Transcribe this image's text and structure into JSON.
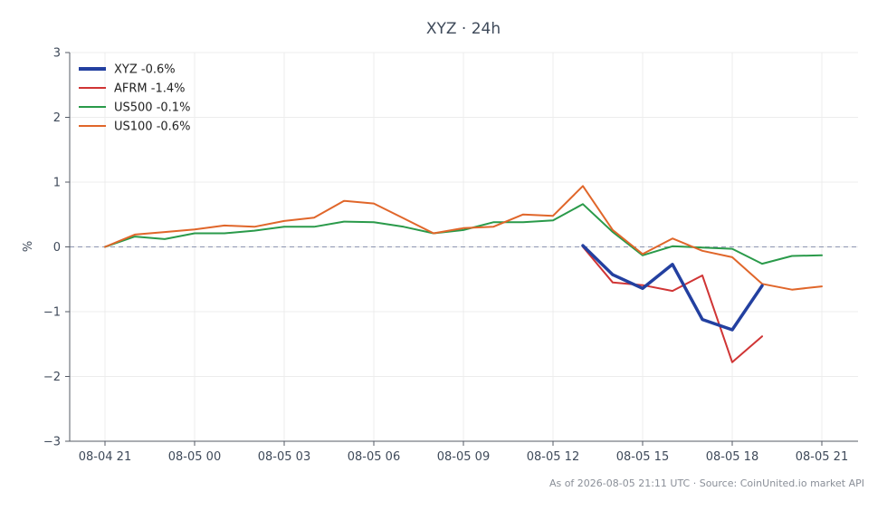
{
  "chart_data": {
    "type": "line",
    "title": "XYZ · 24h",
    "xlabel": "",
    "ylabel": "%",
    "ylim": [
      -3,
      3
    ],
    "yticks": [
      3,
      2,
      1,
      0,
      -1,
      -2,
      -3
    ],
    "ytick_labels": [
      "3",
      "2",
      "1",
      "0",
      "−1",
      "−2",
      "−3"
    ],
    "xlim": [
      0,
      24
    ],
    "xticks": [
      0,
      3,
      6,
      9,
      12,
      15,
      18,
      21,
      24
    ],
    "xtick_labels": [
      "08-04 21",
      "08-05 00",
      "08-05 03",
      "08-05 06",
      "08-05 09",
      "08-05 12",
      "08-05 15",
      "08-05 18",
      "08-05 21"
    ],
    "grid": true,
    "legend_position": "top-left",
    "baseline": 0,
    "series": [
      {
        "name": "XYZ -0.6%",
        "color": "#2340a0",
        "x": [
          16,
          17,
          18,
          19,
          20,
          21,
          22
        ],
        "y": [
          0.02,
          -0.43,
          -0.64,
          -0.27,
          -1.12,
          -1.28,
          -0.6
        ]
      },
      {
        "name": "AFRM -1.4%",
        "color": "#d03535",
        "x": [
          16,
          17,
          18,
          19,
          20,
          21,
          22
        ],
        "y": [
          0.0,
          -0.55,
          -0.59,
          -0.68,
          -0.44,
          -1.78,
          -1.38
        ]
      },
      {
        "name": "US500 -0.1%",
        "color": "#2a9a4a",
        "x": [
          0,
          1,
          2,
          3,
          4,
          5,
          6,
          7,
          8,
          9,
          10,
          11,
          12,
          13,
          14,
          15,
          16,
          17,
          18,
          19,
          20,
          21,
          22,
          23,
          24
        ],
        "y": [
          0.0,
          0.16,
          0.12,
          0.21,
          0.21,
          0.25,
          0.31,
          0.31,
          0.39,
          0.38,
          0.31,
          0.21,
          0.26,
          0.38,
          0.38,
          0.41,
          0.66,
          0.23,
          -0.13,
          0.01,
          -0.01,
          -0.03,
          -0.26,
          -0.14,
          -0.13
        ]
      },
      {
        "name": "US100 -0.6%",
        "color": "#e0662a",
        "x": [
          0,
          1,
          2,
          3,
          4,
          5,
          6,
          7,
          8,
          9,
          10,
          11,
          12,
          13,
          14,
          15,
          16,
          17,
          18,
          19,
          20,
          21,
          22,
          23,
          24
        ],
        "y": [
          0.0,
          0.19,
          0.23,
          0.27,
          0.33,
          0.31,
          0.4,
          0.45,
          0.71,
          0.67,
          0.44,
          0.21,
          0.29,
          0.31,
          0.5,
          0.48,
          0.94,
          0.26,
          -0.11,
          0.13,
          -0.06,
          -0.16,
          -0.57,
          -0.66,
          -0.61
        ]
      }
    ],
    "footer": "As of 2026-08-05 21:11 UTC · Source: CoinUnited.io market API"
  }
}
